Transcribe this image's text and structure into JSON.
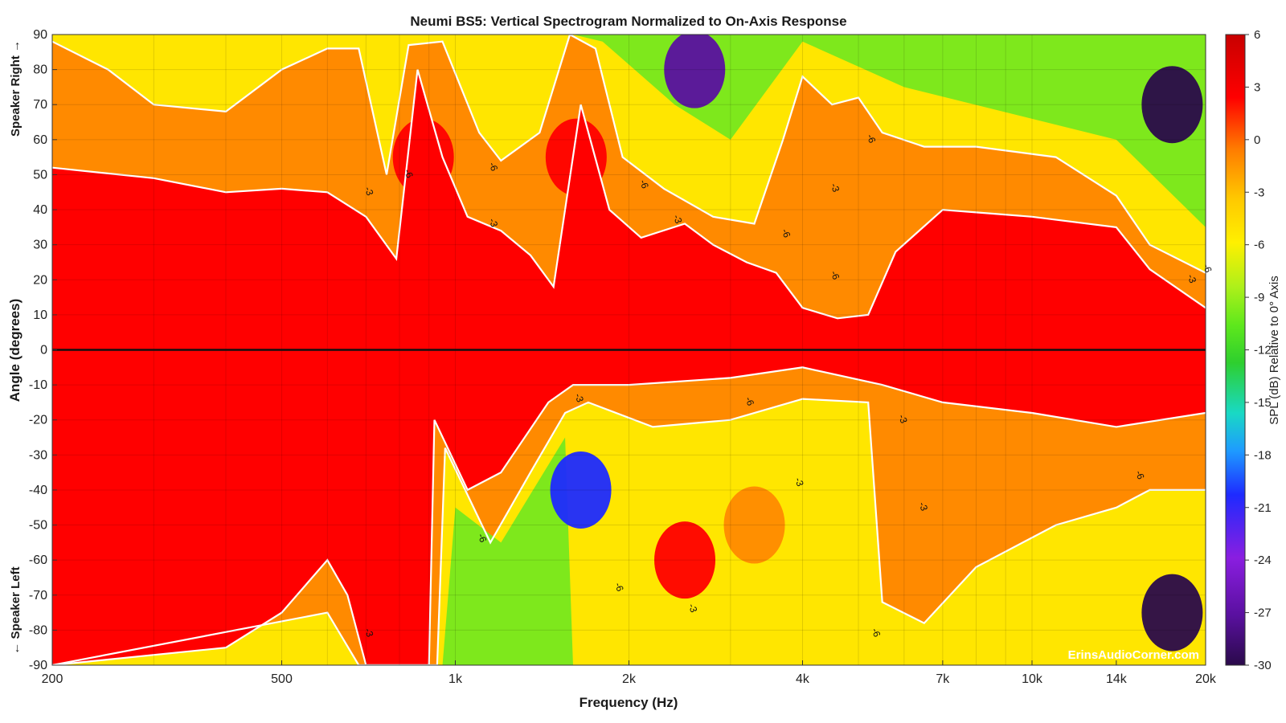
{
  "chart_data": {
    "type": "heatmap",
    "title": "Neumi BS5: Vertical Spectrogram Normalized to On-Axis Response",
    "xlabel": "Frequency (Hz)",
    "ylabel": "Angle (degrees)",
    "x_scale": "log",
    "xlim": [
      200,
      20000
    ],
    "ylim": [
      -90,
      90
    ],
    "x_ticks": [
      {
        "value": 200,
        "label": "200"
      },
      {
        "value": 500,
        "label": "500"
      },
      {
        "value": 1000,
        "label": "1k"
      },
      {
        "value": 2000,
        "label": "2k"
      },
      {
        "value": 4000,
        "label": "4k"
      },
      {
        "value": 7000,
        "label": "7k"
      },
      {
        "value": 10000,
        "label": "10k"
      },
      {
        "value": 14000,
        "label": "14k"
      },
      {
        "value": 20000,
        "label": "20k"
      }
    ],
    "y_ticks": [
      90,
      80,
      70,
      60,
      50,
      40,
      30,
      20,
      10,
      0,
      -10,
      -20,
      -30,
      -40,
      -50,
      -60,
      -70,
      -80,
      -90
    ],
    "y_side_labels": {
      "top": "Speaker Right →",
      "bottom": "← Speaker Left"
    },
    "grid": true,
    "colorbar": {
      "label": "SPL (dB) Relative to 0° Axis",
      "range": [
        -30,
        6
      ],
      "ticks": [
        6,
        3,
        0,
        -3,
        -6,
        -9,
        -12,
        -15,
        -18,
        -21,
        -24,
        -27,
        -30
      ],
      "colors": [
        "#2a0a4a",
        "#5a10a0",
        "#8a1ee0",
        "#1e2aff",
        "#1e9bff",
        "#19d9c4",
        "#2ecf2e",
        "#6ee81c",
        "#aef01a",
        "#fff000",
        "#ffc800",
        "#ff8a00",
        "#ff0000",
        "#c80000"
      ]
    },
    "contour_levels": [
      -3,
      -6
    ],
    "contour_labels": [
      {
        "f": 700,
        "a": 45,
        "text": "-3"
      },
      {
        "f": 820,
        "a": 50,
        "text": "-6"
      },
      {
        "f": 1150,
        "a": 52,
        "text": "-6"
      },
      {
        "f": 1150,
        "a": 36,
        "text": "-3"
      },
      {
        "f": 2100,
        "a": 47,
        "text": "-6"
      },
      {
        "f": 2400,
        "a": 37,
        "text": "-3"
      },
      {
        "f": 3700,
        "a": 33,
        "text": "-6"
      },
      {
        "f": 4500,
        "a": 21,
        "text": "-6"
      },
      {
        "f": 4500,
        "a": 46,
        "text": "-3"
      },
      {
        "f": 5200,
        "a": 60,
        "text": "-6"
      },
      {
        "f": 18700,
        "a": 20,
        "text": "-3"
      },
      {
        "f": 19900,
        "a": 23,
        "text": "-6"
      },
      {
        "f": 1620,
        "a": -14,
        "text": "-3"
      },
      {
        "f": 3200,
        "a": -15,
        "text": "-6"
      },
      {
        "f": 5900,
        "a": -20,
        "text": "-3"
      },
      {
        "f": 3900,
        "a": -38,
        "text": "-3"
      },
      {
        "f": 1100,
        "a": -54,
        "text": "-6"
      },
      {
        "f": 1900,
        "a": -68,
        "text": "-6"
      },
      {
        "f": 2550,
        "a": -74,
        "text": "-3"
      },
      {
        "f": 5300,
        "a": -81,
        "text": "-6"
      },
      {
        "f": 6400,
        "a": -45,
        "text": "-3"
      },
      {
        "f": 700,
        "a": -81,
        "text": "-3"
      },
      {
        "f": 15200,
        "a": -36,
        "text": "-6"
      }
    ],
    "upper_half_minus3_contour": [
      [
        200,
        52
      ],
      [
        300,
        49
      ],
      [
        400,
        45
      ],
      [
        500,
        46
      ],
      [
        600,
        45
      ],
      [
        700,
        38
      ],
      [
        790,
        26
      ],
      [
        860,
        80
      ],
      [
        950,
        55
      ],
      [
        1050,
        38
      ],
      [
        1200,
        34
      ],
      [
        1350,
        27
      ],
      [
        1480,
        18
      ],
      [
        1650,
        70
      ],
      [
        1850,
        40
      ],
      [
        2100,
        32
      ],
      [
        2500,
        36
      ],
      [
        2800,
        30
      ],
      [
        3200,
        25
      ],
      [
        3600,
        22
      ],
      [
        4000,
        12
      ],
      [
        4600,
        9
      ],
      [
        5200,
        10
      ],
      [
        5800,
        28
      ],
      [
        7000,
        40
      ],
      [
        10000,
        38
      ],
      [
        14000,
        35
      ],
      [
        16000,
        23
      ],
      [
        20000,
        12
      ]
    ],
    "upper_half_minus6_contour": [
      [
        200,
        88
      ],
      [
        250,
        80
      ],
      [
        300,
        70
      ],
      [
        400,
        68
      ],
      [
        500,
        80
      ],
      [
        600,
        86
      ],
      [
        680,
        86
      ],
      [
        760,
        50
      ],
      [
        830,
        87
      ],
      [
        950,
        88
      ],
      [
        1100,
        62
      ],
      [
        1200,
        54
      ],
      [
        1400,
        62
      ],
      [
        1580,
        90
      ],
      [
        1750,
        86
      ],
      [
        1950,
        55
      ],
      [
        2300,
        46
      ],
      [
        2800,
        38
      ],
      [
        3300,
        36
      ],
      [
        3700,
        60
      ],
      [
        4000,
        78
      ],
      [
        4500,
        70
      ],
      [
        5000,
        72
      ],
      [
        5500,
        62
      ],
      [
        6500,
        58
      ],
      [
        8000,
        58
      ],
      [
        11000,
        55
      ],
      [
        14000,
        44
      ],
      [
        16000,
        30
      ],
      [
        20000,
        22
      ]
    ],
    "lower_half_minus3_contour": [
      [
        200,
        -90
      ],
      [
        400,
        -85
      ],
      [
        500,
        -75
      ],
      [
        600,
        -60
      ],
      [
        650,
        -70
      ],
      [
        700,
        -90
      ],
      [
        900,
        -90
      ],
      [
        920,
        -20
      ],
      [
        1050,
        -40
      ],
      [
        1200,
        -35
      ],
      [
        1450,
        -15
      ],
      [
        1600,
        -10
      ],
      [
        2000,
        -10
      ],
      [
        3000,
        -8
      ],
      [
        4000,
        -5
      ],
      [
        5500,
        -10
      ],
      [
        7000,
        -15
      ],
      [
        10000,
        -18
      ],
      [
        14000,
        -22
      ],
      [
        20000,
        -18
      ]
    ],
    "lower_half_minus6_contour": [
      [
        200,
        -90
      ],
      [
        600,
        -75
      ],
      [
        680,
        -90
      ],
      [
        930,
        -90
      ],
      [
        960,
        -28
      ],
      [
        1150,
        -55
      ],
      [
        1350,
        -35
      ],
      [
        1550,
        -18
      ],
      [
        1700,
        -15
      ],
      [
        2200,
        -22
      ],
      [
        3000,
        -20
      ],
      [
        4000,
        -14
      ],
      [
        5200,
        -15
      ],
      [
        5500,
        -72
      ],
      [
        6500,
        -78
      ],
      [
        8000,
        -62
      ],
      [
        11000,
        -50
      ],
      [
        14000,
        -45
      ],
      [
        16000,
        -40
      ],
      [
        20000,
        -40
      ]
    ],
    "hot_spots": [
      {
        "f": 3300,
        "a": -50,
        "level": -3,
        "note": "orange island below axis"
      },
      {
        "f": 2500,
        "a": -60,
        "level": 0,
        "note": "red island below axis"
      },
      {
        "f": 1620,
        "a": 55,
        "level": 0,
        "note": "red vertical lobe above axis"
      },
      {
        "f": 880,
        "a": 55,
        "level": 0,
        "note": "red vertical lobe above axis"
      }
    ],
    "cold_spots": [
      {
        "f": 17500,
        "a": 70,
        "level": -30
      },
      {
        "f": 17500,
        "a": -75,
        "level": -30
      },
      {
        "f": 2600,
        "a": 80,
        "level": -27
      },
      {
        "f": 1650,
        "a": -40,
        "level": -21
      }
    ],
    "reference_line": {
      "angle": 0
    }
  },
  "watermark": "ErinsAudioCorner.com"
}
